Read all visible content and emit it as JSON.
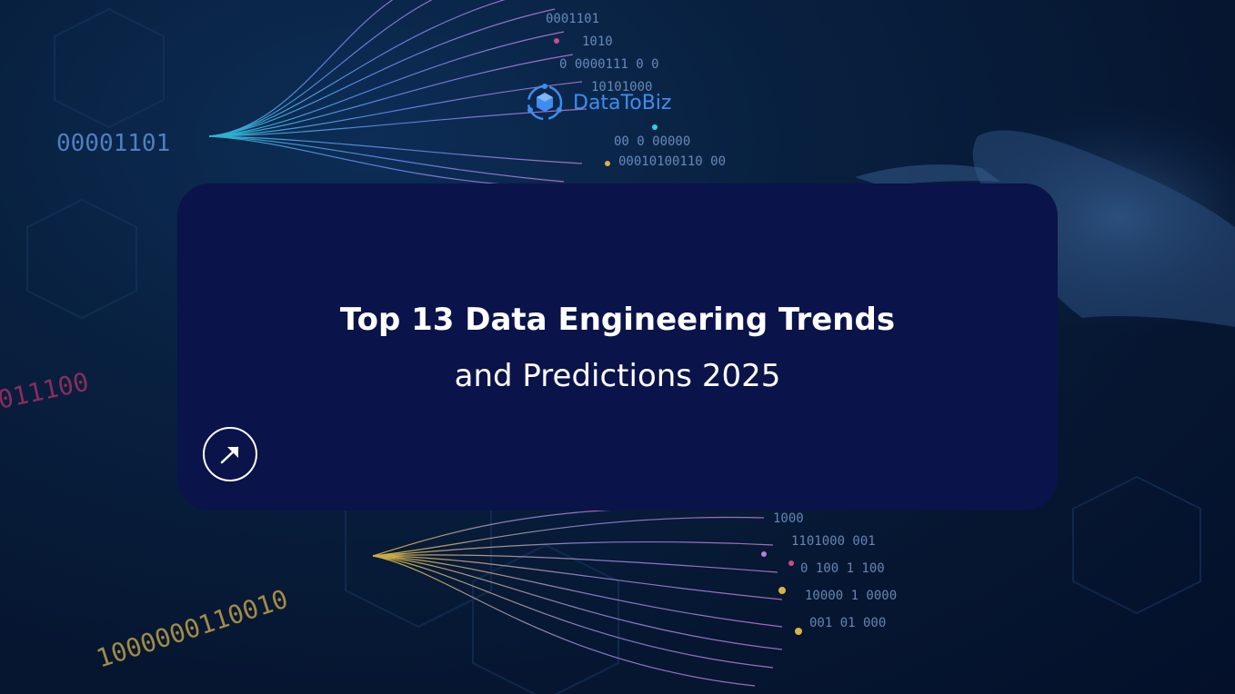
{
  "brand": {
    "name": "DataToBiz",
    "color": "#3e8df0"
  },
  "card": {
    "title": "Top 13 Data Engineering Trends",
    "subtitle": "and Predictions 2025",
    "background": "#0a134a",
    "arrow_icon": "arrow-up-right-icon"
  },
  "background": {
    "binary_top_left": "00001101",
    "binary_mid_left": "011100",
    "binary_bottom_left": "1000000110010",
    "binary_top_grid": [
      "0001101",
      "1010",
      "0 0000111 0 0",
      "10101000",
      "00 0 00000",
      "00010100110 00"
    ],
    "binary_bottom_grid": [
      "1000",
      "1101000 001",
      "0 100 1 100",
      "10000 1 0000",
      "001 01 000"
    ]
  }
}
